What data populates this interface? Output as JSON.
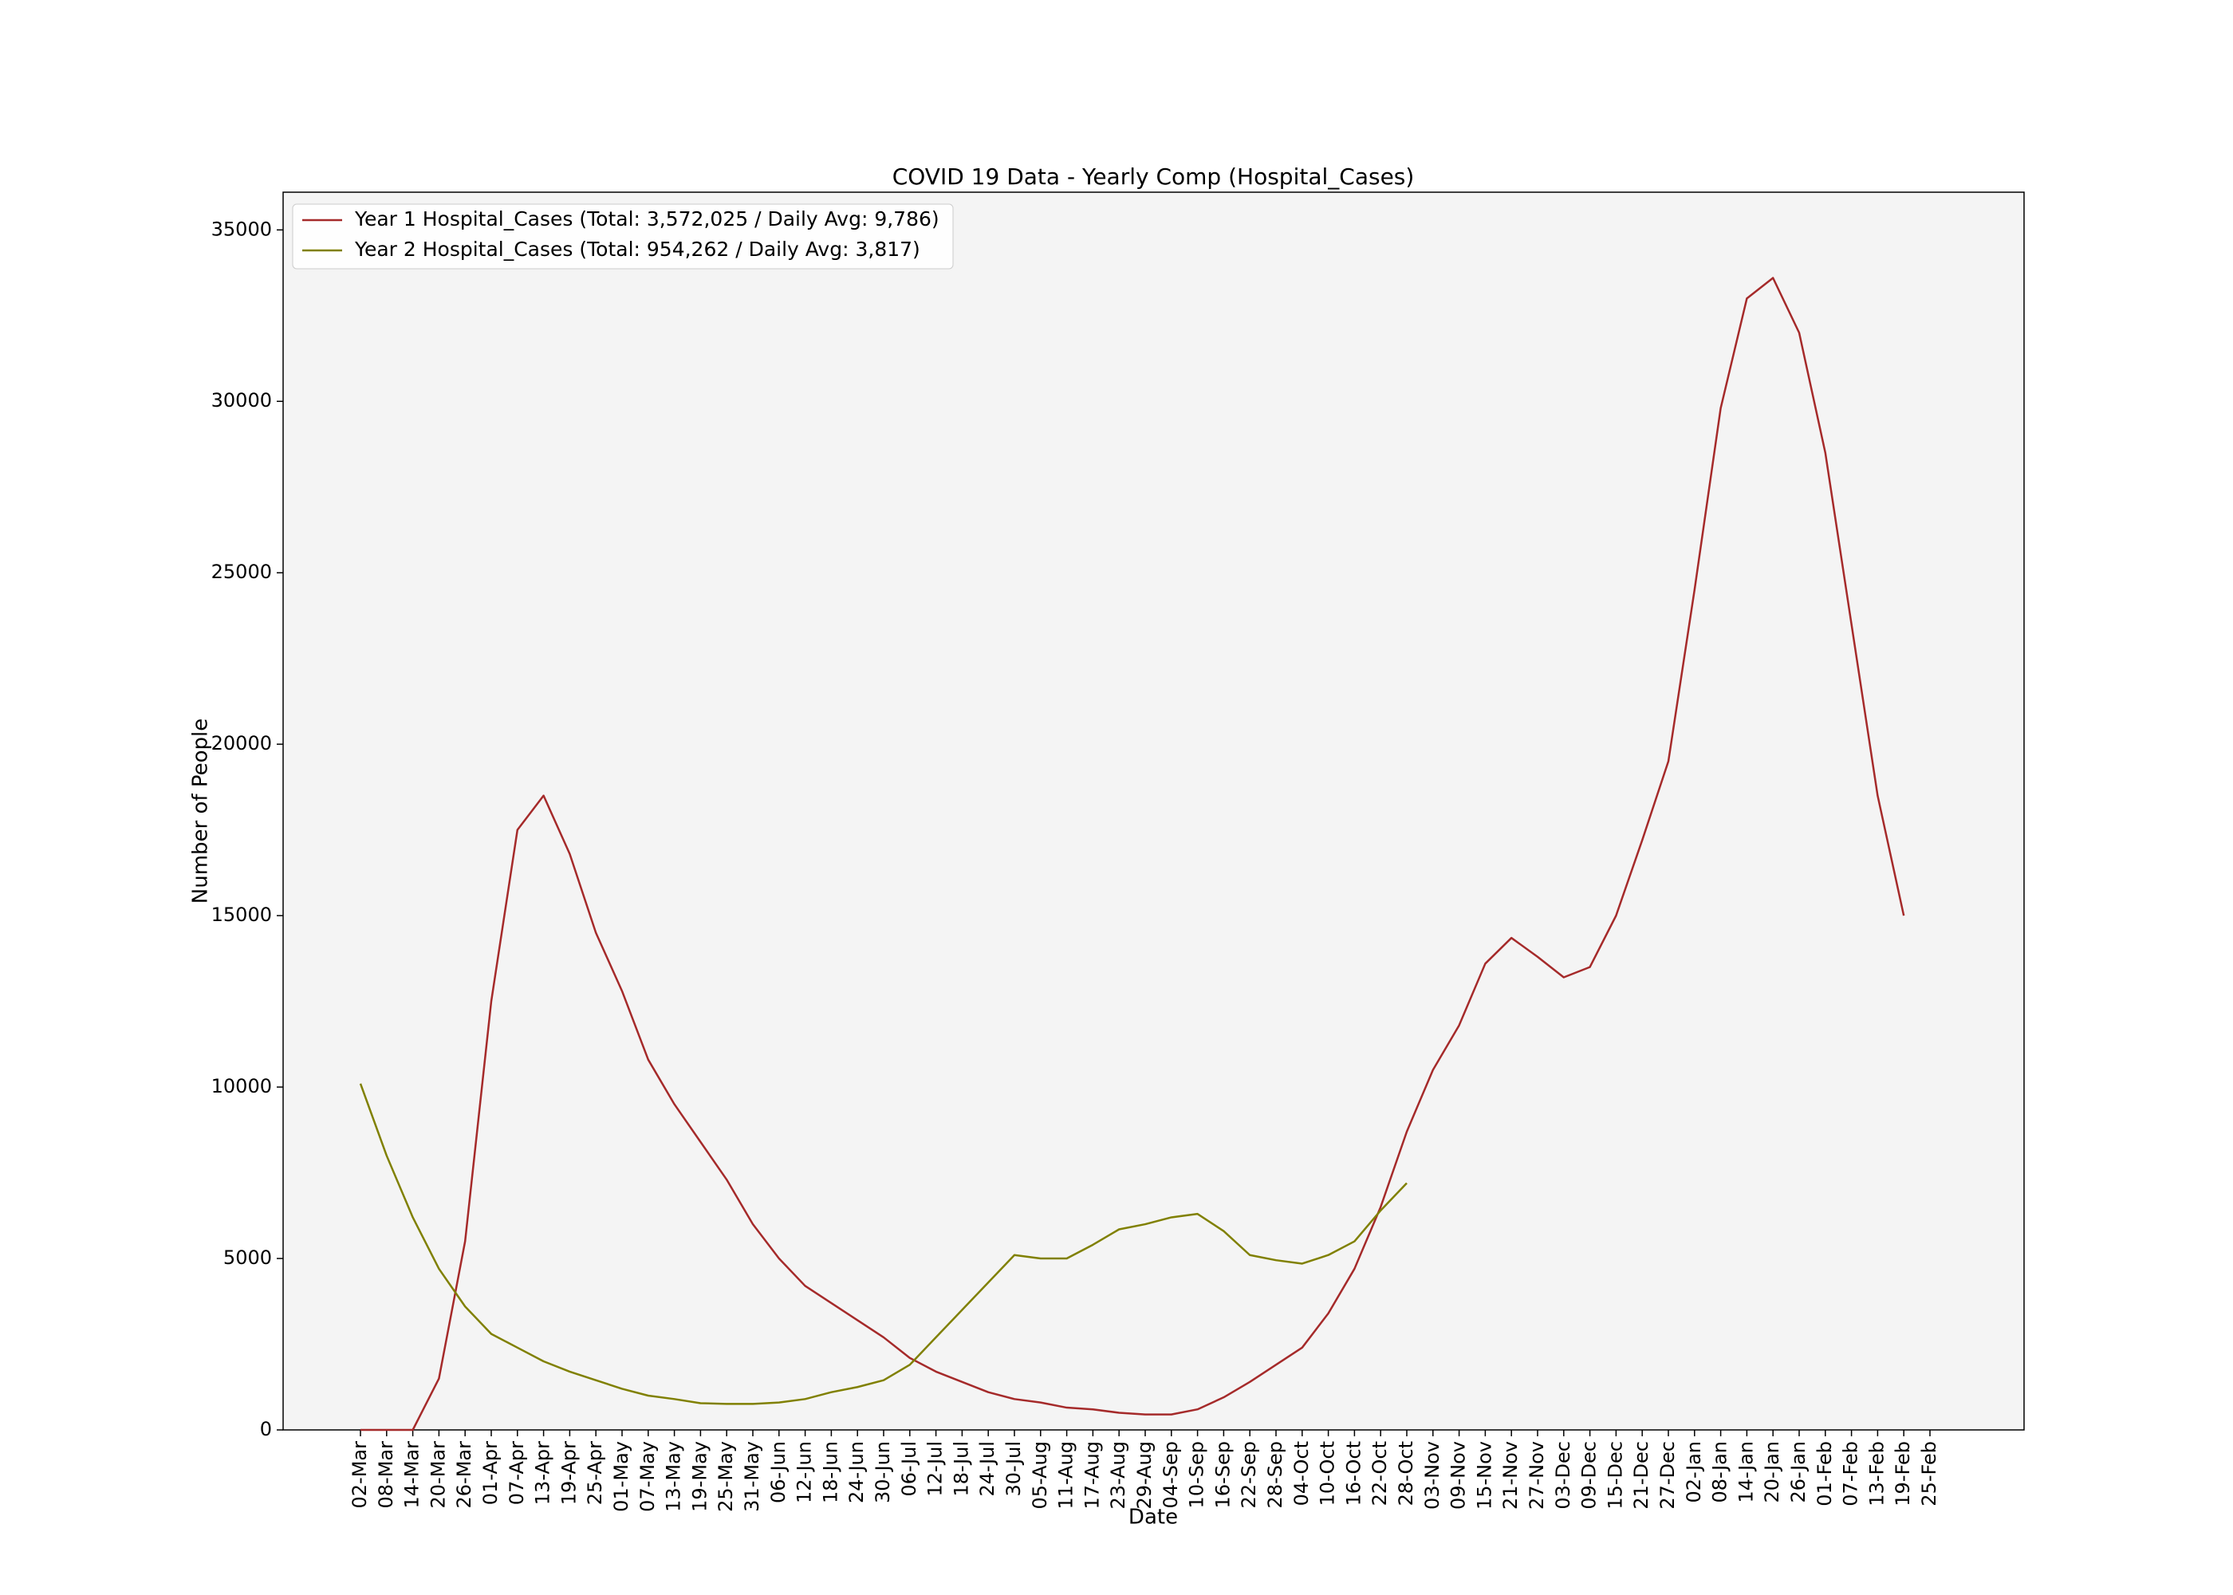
{
  "chart_data": {
    "type": "line",
    "title": "COVID 19 Data - Yearly Comp (Hospital_Cases)",
    "x_label": "Date",
    "y_label": "Number of People",
    "categories": [
      "02-Mar",
      "08-Mar",
      "14-Mar",
      "20-Mar",
      "26-Mar",
      "01-Apr",
      "07-Apr",
      "13-Apr",
      "19-Apr",
      "25-Apr",
      "01-May",
      "07-May",
      "13-May",
      "19-May",
      "25-May",
      "31-May",
      "06-Jun",
      "12-Jun",
      "18-Jun",
      "24-Jun",
      "30-Jun",
      "06-Jul",
      "12-Jul",
      "18-Jul",
      "24-Jul",
      "30-Jul",
      "05-Aug",
      "11-Aug",
      "17-Aug",
      "23-Aug",
      "29-Aug",
      "04-Sep",
      "10-Sep",
      "16-Sep",
      "22-Sep",
      "28-Sep",
      "04-Oct",
      "10-Oct",
      "16-Oct",
      "22-Oct",
      "28-Oct",
      "03-Nov",
      "09-Nov",
      "15-Nov",
      "21-Nov",
      "27-Nov",
      "03-Dec",
      "09-Dec",
      "15-Dec",
      "21-Dec",
      "27-Dec",
      "02-Jan",
      "08-Jan",
      "14-Jan",
      "20-Jan",
      "26-Jan",
      "01-Feb",
      "07-Feb",
      "13-Feb",
      "19-Feb",
      "25-Feb"
    ],
    "series": [
      {
        "name": "Year 1 Hospital_Cases (Total: 3,572,025 / Daily Avg: 9,786)",
        "color": "#a52a2a",
        "values": [
          0,
          0,
          0,
          1500,
          5500,
          12500,
          17500,
          18500,
          16800,
          14500,
          12800,
          10800,
          9500,
          8400,
          7300,
          6000,
          5000,
          4200,
          3700,
          3200,
          2700,
          2100,
          1700,
          1400,
          1100,
          900,
          800,
          650,
          600,
          500,
          450,
          450,
          600,
          950,
          1400,
          1900,
          2400,
          3400,
          4700,
          6500,
          8700,
          10500,
          11800,
          13600,
          14350,
          13800,
          13200,
          13500,
          15000,
          17200,
          19500,
          24500,
          29800,
          33000,
          33600,
          32000,
          28500,
          23500,
          18500,
          15000,
          null
        ]
      },
      {
        "name": "Year 2 Hospital_Cases (Total: 954,262 / Daily Avg: 3,817)",
        "color": "#808000",
        "values": [
          10100,
          8000,
          6200,
          4700,
          3600,
          2800,
          2400,
          2000,
          1700,
          1450,
          1200,
          1000,
          900,
          780,
          760,
          760,
          800,
          900,
          1100,
          1250,
          1450,
          1900,
          2700,
          3500,
          4300,
          5100,
          5000,
          5000,
          5400,
          5850,
          6000,
          6200,
          6300,
          5800,
          5100,
          4950,
          4850,
          5100,
          5500,
          6400,
          7200,
          null,
          null,
          null,
          null,
          null,
          null,
          null,
          null,
          null,
          null,
          null,
          null,
          null,
          null,
          null,
          null,
          null,
          null,
          null,
          null
        ]
      }
    ],
    "ylim": [
      0,
      36100
    ],
    "yticks": [
      0,
      5000,
      10000,
      15000,
      20000,
      25000,
      30000,
      35000
    ],
    "legend": "upper left"
  }
}
